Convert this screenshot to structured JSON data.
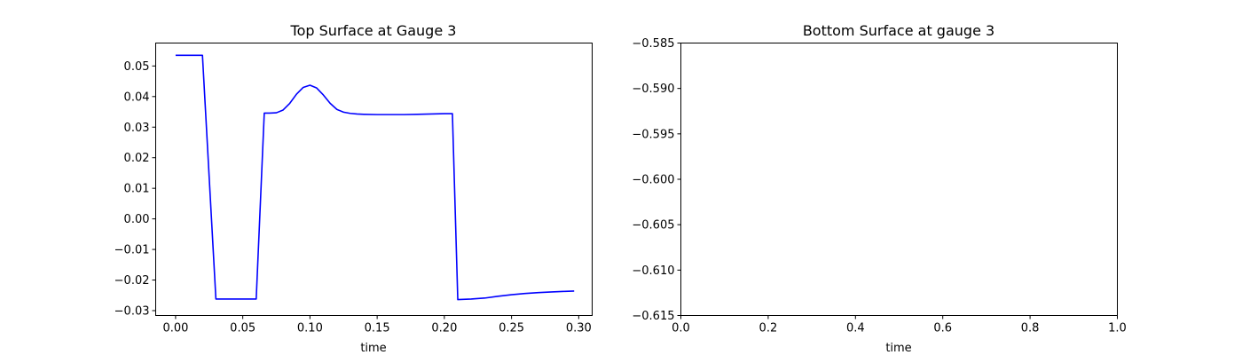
{
  "chart_data": [
    {
      "type": "line",
      "title": "Top Surface at Gauge 3",
      "xlabel": "time",
      "ylabel": "",
      "xlim": [
        -0.0148,
        0.31
      ],
      "ylim": [
        -0.0316,
        0.0575
      ],
      "xticks": [
        0.0,
        0.05,
        0.1,
        0.15,
        0.2,
        0.25,
        0.3
      ],
      "xtick_labels": [
        "0.00",
        "0.05",
        "0.10",
        "0.15",
        "0.20",
        "0.25",
        "0.30"
      ],
      "yticks": [
        -0.03,
        -0.02,
        -0.01,
        0.0,
        0.01,
        0.02,
        0.03,
        0.04,
        0.05
      ],
      "ytick_labels": [
        "−0.03",
        "−0.02",
        "−0.01",
        "0.00",
        "0.01",
        "0.02",
        "0.03",
        "0.04",
        "0.05"
      ],
      "grid": false,
      "series": [
        {
          "color": "#0000ff",
          "x": [
            0.0,
            0.02,
            0.03,
            0.06,
            0.066,
            0.07,
            0.075,
            0.08,
            0.085,
            0.09,
            0.095,
            0.1,
            0.105,
            0.11,
            0.115,
            0.12,
            0.125,
            0.13,
            0.135,
            0.14,
            0.15,
            0.16,
            0.17,
            0.18,
            0.19,
            0.2,
            0.206,
            0.21,
            0.22,
            0.23,
            0.24,
            0.25,
            0.26,
            0.27,
            0.28,
            0.29,
            0.2966
          ],
          "y": [
            0.0535,
            0.0535,
            -0.0262,
            -0.0262,
            0.0346,
            0.0346,
            0.0347,
            0.0356,
            0.0378,
            0.0408,
            0.043,
            0.0437,
            0.0428,
            0.0405,
            0.0378,
            0.0358,
            0.0349,
            0.0345,
            0.0343,
            0.0342,
            0.0341,
            0.0341,
            0.0341,
            0.0342,
            0.0343,
            0.0344,
            0.0344,
            -0.0264,
            -0.0262,
            -0.0259,
            -0.0253,
            -0.0248,
            -0.0244,
            -0.0241,
            -0.0239,
            -0.0237,
            -0.0236
          ]
        }
      ]
    },
    {
      "type": "line",
      "title": "Bottom Surface at gauge 3",
      "xlabel": "time",
      "ylabel": "",
      "xlim": [
        0.0,
        1.0
      ],
      "ylim": [
        -0.615,
        -0.585
      ],
      "xticks": [
        0.0,
        0.2,
        0.4,
        0.6,
        0.8,
        1.0
      ],
      "xtick_labels": [
        "0.0",
        "0.2",
        "0.4",
        "0.6",
        "0.8",
        "1.0"
      ],
      "yticks": [
        -0.615,
        -0.61,
        -0.605,
        -0.6,
        -0.595,
        -0.59,
        -0.585
      ],
      "ytick_labels": [
        "−0.615",
        "−0.610",
        "−0.605",
        "−0.600",
        "−0.595",
        "−0.590",
        "−0.585"
      ],
      "grid": false,
      "series": []
    }
  ]
}
